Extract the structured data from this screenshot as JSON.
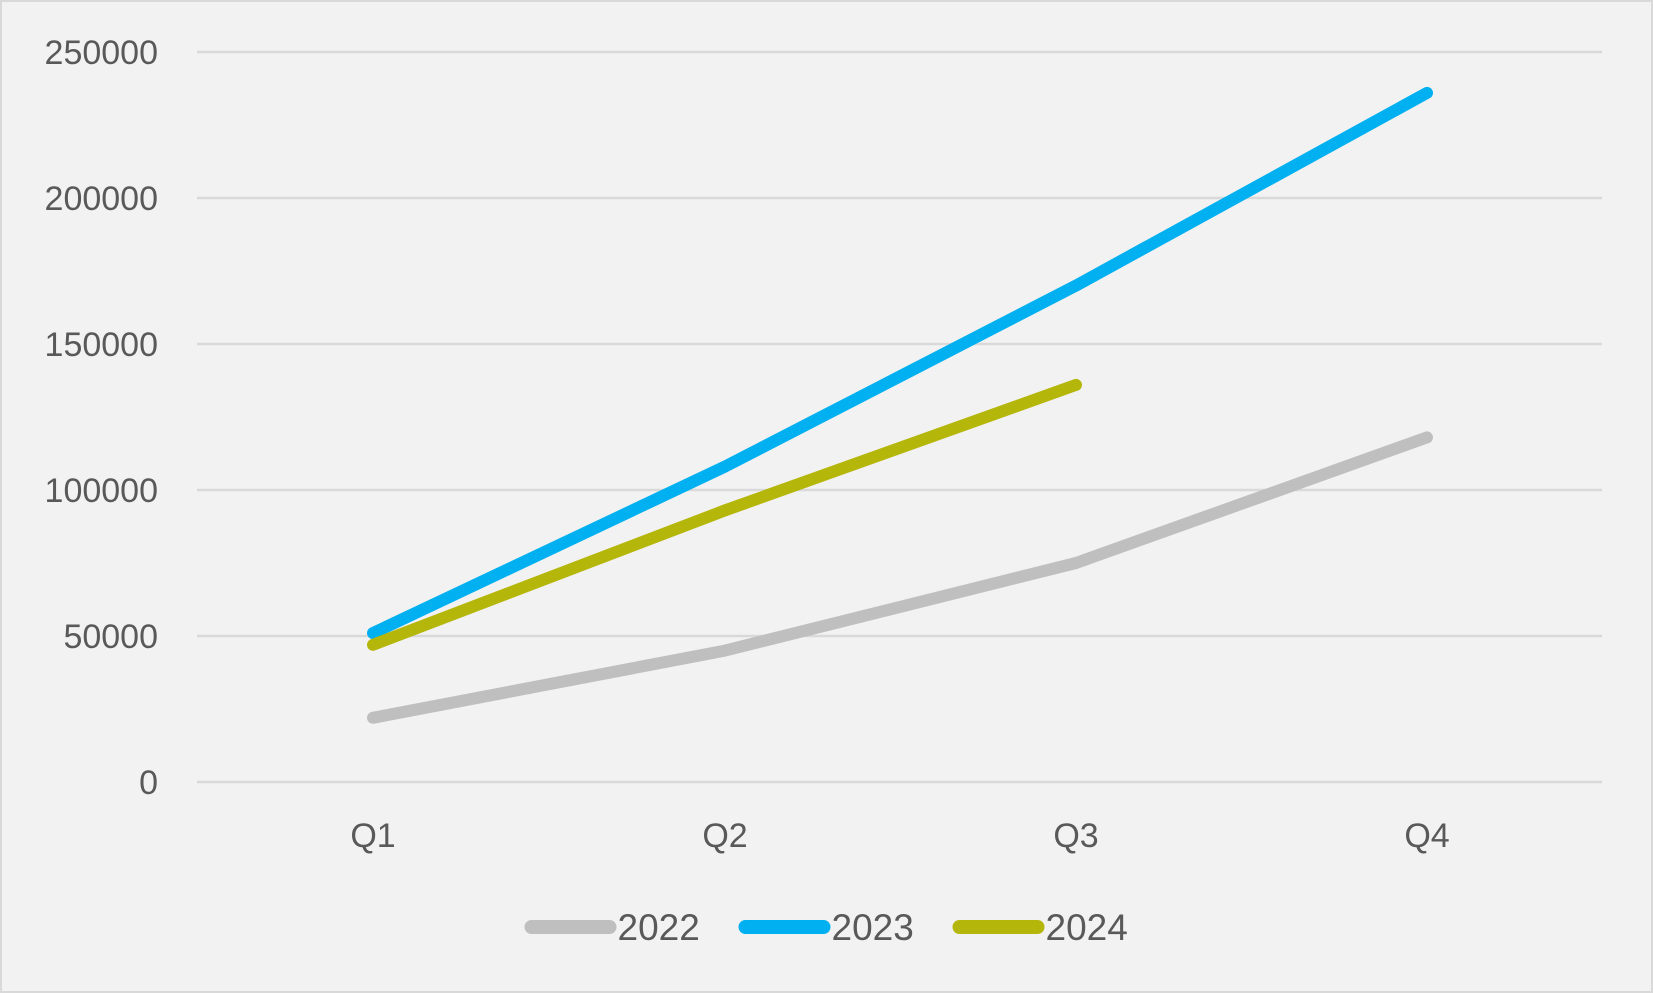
{
  "chart_data": {
    "type": "line",
    "title": "",
    "xlabel": "",
    "ylabel": "",
    "categories": [
      "Q1",
      "Q2",
      "Q3",
      "Q4"
    ],
    "ylim": [
      0,
      250000
    ],
    "yticks": [
      "0",
      "50000",
      "100000",
      "150000",
      "200000",
      "250000"
    ],
    "grid": true,
    "legend_position": "bottom",
    "series": [
      {
        "name": "2022",
        "color": "#bfbfbf",
        "values": [
          22000,
          45000,
          75000,
          118000
        ]
      },
      {
        "name": "2023",
        "color": "#00b0f0",
        "values": [
          51000,
          108000,
          170000,
          236000
        ]
      },
      {
        "name": "2024",
        "color": "#b5b60a",
        "values": [
          47000,
          93000,
          136000,
          null
        ]
      }
    ]
  }
}
